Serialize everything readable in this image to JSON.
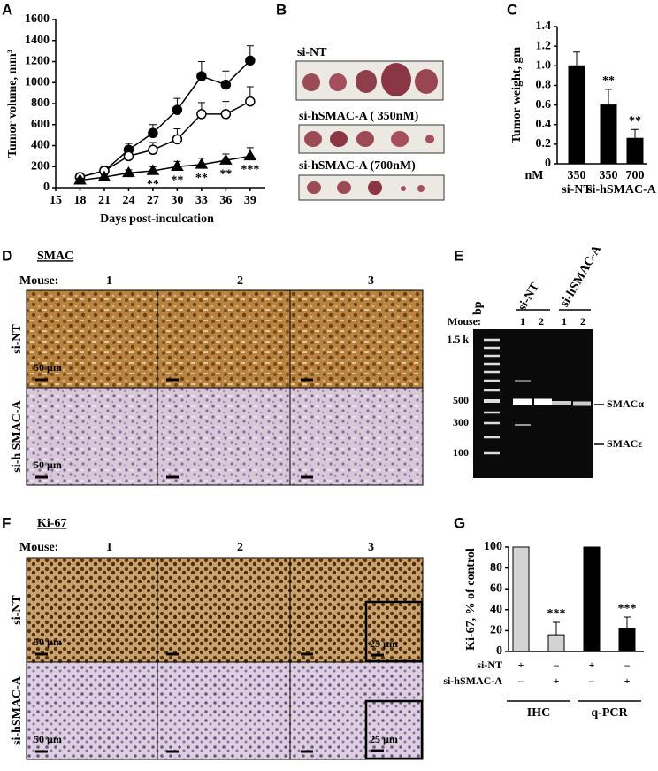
{
  "letters": [
    "A",
    "B",
    "C",
    "D",
    "E",
    "F",
    "G"
  ],
  "chart_data": [
    {
      "type": "line",
      "x_label": "Days post-inculcation",
      "y_label": "Tumor volume, mm³",
      "x": [
        18,
        21,
        24,
        27,
        30,
        33,
        36,
        39
      ],
      "xlim": [
        15,
        40
      ],
      "xticks": [
        15,
        18,
        21,
        24,
        27,
        30,
        33,
        36,
        39
      ],
      "ylim": [
        0,
        1600
      ],
      "yticks": [
        0,
        200,
        400,
        600,
        800,
        1000,
        1200,
        1400,
        1600
      ],
      "series": [
        {
          "marker": "circle",
          "color": "#000000",
          "fill": "#000000",
          "values": [
            100,
            160,
            360,
            520,
            740,
            1060,
            980,
            1210
          ],
          "errors": [
            40,
            40,
            60,
            80,
            110,
            140,
            130,
            140
          ]
        },
        {
          "marker": "circle",
          "color": "#000000",
          "fill": "#ffffff",
          "values": [
            100,
            160,
            300,
            360,
            460,
            700,
            700,
            820
          ],
          "errors": [
            30,
            40,
            60,
            70,
            100,
            110,
            120,
            140
          ]
        },
        {
          "marker": "triangle",
          "color": "#000000",
          "fill": "#000000",
          "values": [
            70,
            100,
            140,
            160,
            200,
            220,
            260,
            300
          ],
          "errors": [
            20,
            20,
            30,
            40,
            50,
            60,
            60,
            80
          ]
        }
      ],
      "annotations": [
        {
          "x": 27,
          "text": "**"
        },
        {
          "x": 30,
          "text": "**"
        },
        {
          "x": 33,
          "text": "**"
        },
        {
          "x": 36,
          "text": "**"
        },
        {
          "x": 39,
          "text": "***"
        }
      ]
    },
    {
      "type": "bar",
      "y_label": "Tumor weight, gm",
      "unit_label": "nM",
      "categories": [
        "350",
        "350",
        "700"
      ],
      "group_labels": [
        "si-NT",
        "si-hSMAC-A"
      ],
      "values": [
        1.0,
        0.6,
        0.26
      ],
      "errors": [
        0.14,
        0.16,
        0.09
      ],
      "significance": [
        null,
        "**",
        "**"
      ],
      "colors": [
        "#000000",
        "#000000",
        "#000000"
      ],
      "ylim": [
        0,
        1.4
      ],
      "yticks": [
        0,
        0.2,
        0.4,
        0.6,
        0.8,
        {
          "value": 1,
          "label": "1.0"
        },
        1.2,
        1.4
      ]
    },
    {
      "type": "bar",
      "y_label": "Ki-67, % of control",
      "values": [
        100,
        16,
        100,
        22
      ],
      "errors": [
        0,
        12,
        0,
        11
      ],
      "significance": [
        null,
        "***",
        null,
        "***"
      ],
      "colors": [
        "#d3d3d3",
        "#d3d3d3",
        "#000000",
        "#000000"
      ],
      "rows": [
        {
          "label": "si-NT",
          "signs": [
            "+",
            "–",
            "+",
            "–"
          ]
        },
        {
          "label": "si-hSMAC-A",
          "signs": [
            "–",
            "+",
            "–",
            "+"
          ]
        }
      ],
      "group_labels": [
        "IHC",
        "q-PCR"
      ],
      "ylim": [
        0,
        100
      ],
      "yticks": [
        0,
        20,
        40,
        60,
        80,
        100
      ]
    }
  ],
  "panel_b": {
    "rows": [
      "si-NT",
      "si-hSMAC-A ( 350nM)",
      "si-hSMAC-A (700nM)"
    ]
  },
  "panel_d": {
    "title": "SMAC",
    "mouse_label": "Mouse:",
    "mice": [
      "1",
      "2",
      "3"
    ],
    "rows": [
      "si-NT",
      "si-h SMAC-A"
    ],
    "scale_bars": [
      "50 µm",
      "50 µm"
    ]
  },
  "panel_e": {
    "ladder_title": "bp",
    "lanes": [
      "si-NT",
      "si-hSMAC-A"
    ],
    "mouse_label": "Mouse:",
    "mice": [
      "1",
      "2",
      "1",
      "2"
    ],
    "ladder": [
      "1.5 k",
      "500",
      "300",
      "100"
    ],
    "bands": [
      "SMACα",
      "SMACε"
    ]
  },
  "panel_f": {
    "title": "Ki-67",
    "mouse_label": "Mouse:",
    "mice": [
      "1",
      "2",
      "3"
    ],
    "rows": [
      "si-NT",
      "si-hSMAC-A"
    ],
    "scale_bars": [
      "50 µm",
      "50 µm"
    ],
    "inset_scale_bars": [
      "25 µm",
      "25 µm"
    ]
  }
}
